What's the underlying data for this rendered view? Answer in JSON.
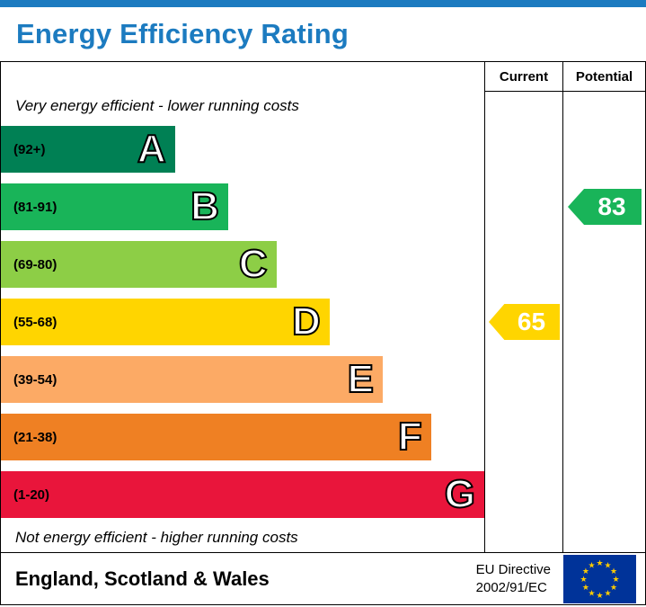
{
  "title": "Energy Efficiency Rating",
  "accent": {
    "header_blue": "#1c7bc0"
  },
  "table": {
    "columns": {
      "current": "Current",
      "potential": "Potential"
    },
    "top_caption": "Very energy efficient - lower running costs",
    "bottom_caption": "Not energy efficient - higher running costs"
  },
  "chart_data": {
    "type": "bar",
    "title": "Energy Efficiency Rating",
    "value_range": [
      1,
      100
    ],
    "bands": [
      {
        "letter": "A",
        "range": "(92+)",
        "color": "#008054",
        "width_pct": 36
      },
      {
        "letter": "B",
        "range": "(81-91)",
        "color": "#19b459",
        "width_pct": 47
      },
      {
        "letter": "C",
        "range": "(69-80)",
        "color": "#8dce46",
        "width_pct": 57
      },
      {
        "letter": "D",
        "range": "(55-68)",
        "color": "#ffd500",
        "width_pct": 68
      },
      {
        "letter": "E",
        "range": "(39-54)",
        "color": "#fcaa65",
        "width_pct": 79
      },
      {
        "letter": "F",
        "range": "(21-38)",
        "color": "#ef8023",
        "width_pct": 89
      },
      {
        "letter": "G",
        "range": "(1-20)",
        "color": "#e9153b",
        "width_pct": 100
      }
    ],
    "ratings": {
      "current": {
        "value": 65,
        "band": "D",
        "color": "#ffd500"
      },
      "potential": {
        "value": 83,
        "band": "B",
        "color": "#19b459"
      }
    }
  },
  "footer": {
    "region": "England, Scotland & Wales",
    "directive_line1": "EU Directive",
    "directive_line2": "2002/91/EC",
    "eu_flag": {
      "background": "#003399",
      "star_color": "#ffcc00"
    }
  }
}
